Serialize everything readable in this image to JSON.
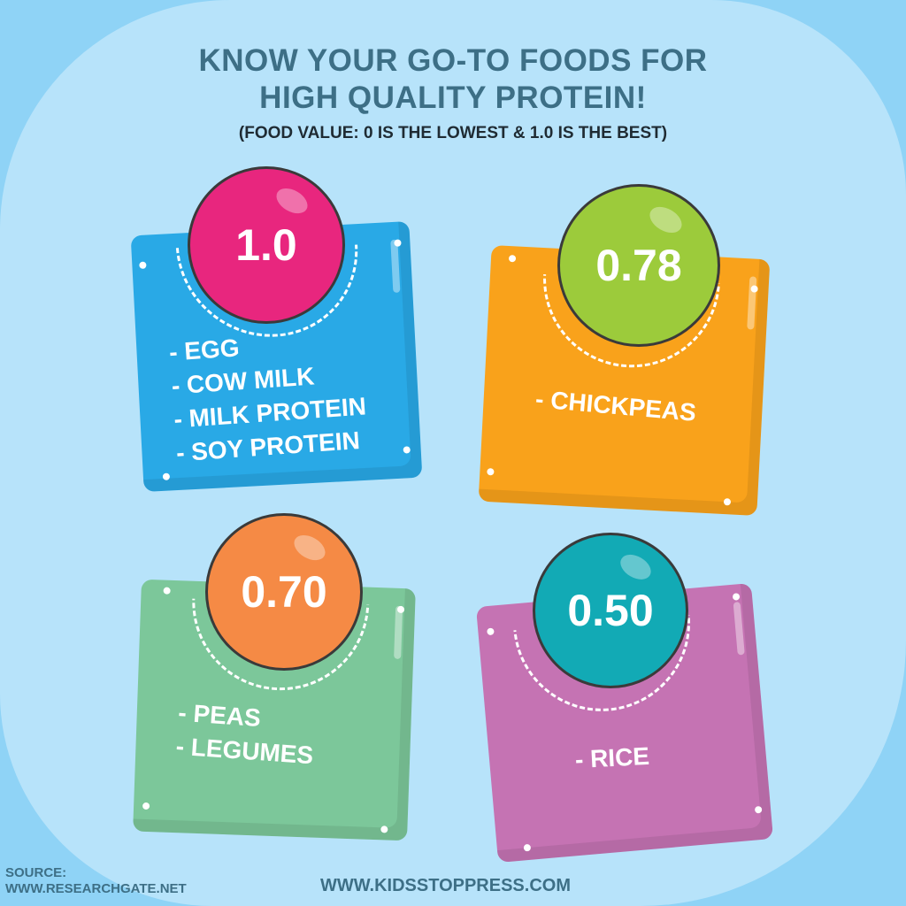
{
  "header": {
    "title_line1": "KNOW YOUR GO-TO FOODS FOR",
    "title_line2": "HIGH QUALITY PROTEIN!",
    "subtitle": "(FOOD VALUE: 0 IS THE LOWEST & 1.0 IS THE BEST)"
  },
  "cards": [
    {
      "value": "1.0",
      "items": [
        "- EGG",
        "- COW MILK",
        "- MILK PROTEIN",
        "- SOY PROTEIN"
      ],
      "card_color": "#29a9e6",
      "ball_color": "#e8267e"
    },
    {
      "value": "0.78",
      "items": [
        "- CHICKPEAS"
      ],
      "card_color": "#f9a21b",
      "ball_color": "#9ccb3b"
    },
    {
      "value": "0.70",
      "items": [
        "- PEAS",
        "- LEGUMES"
      ],
      "card_color": "#7cc79a",
      "ball_color": "#f58a45"
    },
    {
      "value": "0.50",
      "items": [
        "- RICE"
      ],
      "card_color": "#c573b3",
      "ball_color": "#12aab5"
    }
  ],
  "footer": {
    "source_label": "SOURCE:",
    "source_url": "WWW.RESEARCHGATE.NET",
    "site": "WWW.KIDSSTOPPRESS.COM"
  }
}
